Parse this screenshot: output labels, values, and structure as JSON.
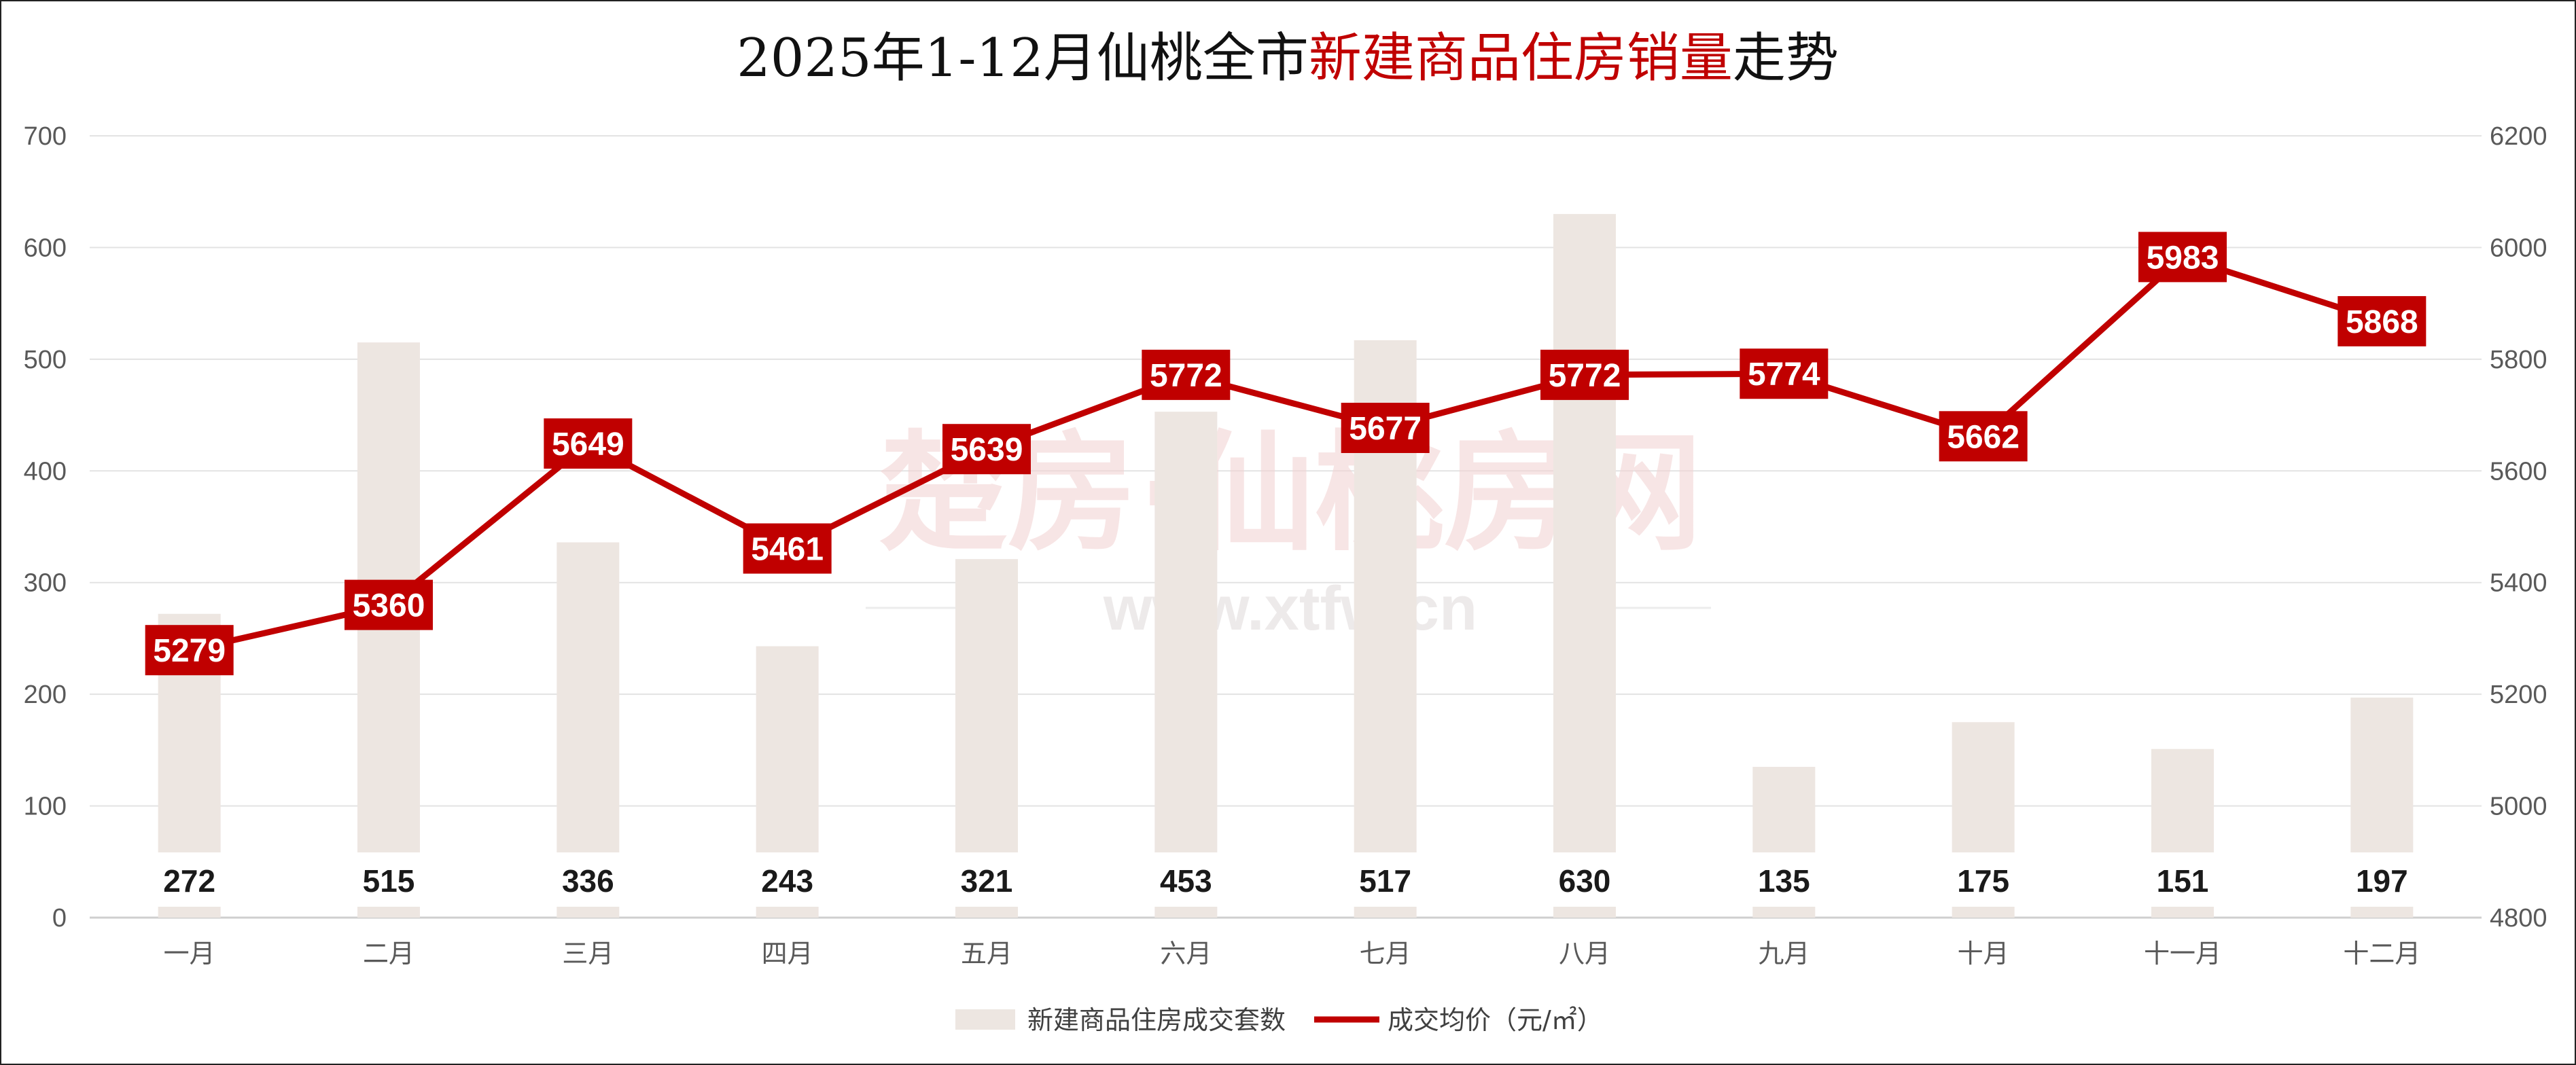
{
  "title_parts": {
    "prefix": "2025年1-12月仙桃全市",
    "highlight": "新建商品住房销量",
    "suffix": "走势"
  },
  "watermark": {
    "main": "楚房·仙桃房网",
    "sub": "www.xtfw.cn"
  },
  "colors": {
    "bar": "#ede6e1",
    "line": "#c00000",
    "grid": "#e3e3e3",
    "title_highlight": "#c00000"
  },
  "chart_data": {
    "type": "bar+line",
    "title": "2025年1-12月仙桃全市新建商品住房销量走势",
    "categories": [
      "一月",
      "二月",
      "三月",
      "四月",
      "五月",
      "六月",
      "七月",
      "八月",
      "九月",
      "十月",
      "十一月",
      "十二月"
    ],
    "series": [
      {
        "name": "新建商品住房成交套数",
        "type": "bar",
        "axis": "left",
        "values": [
          272,
          515,
          336,
          243,
          321,
          453,
          517,
          630,
          135,
          175,
          151,
          197
        ]
      },
      {
        "name": "成交均价（元/㎡）",
        "type": "line",
        "axis": "right",
        "values": [
          5279,
          5360,
          5649,
          5461,
          5639,
          5772,
          5677,
          5772,
          5774,
          5662,
          5983,
          5868
        ]
      }
    ],
    "y_left": {
      "min": 0,
      "max": 700,
      "step": 100
    },
    "y_right": {
      "min": 4800,
      "max": 6200,
      "step": 200
    },
    "grid": true,
    "legend_position": "bottom"
  }
}
